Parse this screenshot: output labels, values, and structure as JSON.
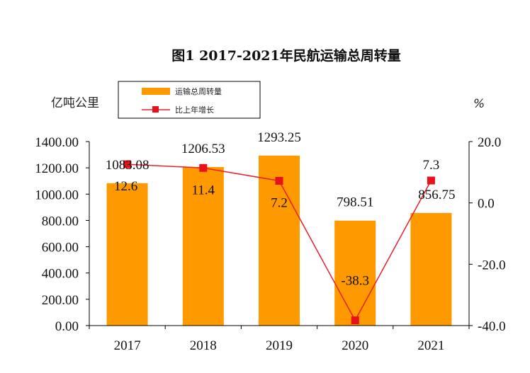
{
  "title": "图1 2017-2021年民航运输总周转量",
  "units": {
    "left": "亿吨公里",
    "right": "%"
  },
  "colors": {
    "bar": "#FF9900",
    "line": "#E8202A",
    "marker": "#E8101A",
    "axis": "#000000"
  },
  "chart_data": {
    "type": "bar",
    "categories": [
      "2017",
      "2018",
      "2019",
      "2020",
      "2021"
    ],
    "series": [
      {
        "name": "运输总周转量",
        "type": "bar",
        "axis": "left",
        "values": [
          1083.08,
          1206.53,
          1293.25,
          798.51,
          856.75
        ],
        "labels": [
          "1083.08",
          "1206.53",
          "1293.25",
          "798.51",
          "856.75"
        ]
      },
      {
        "name": "比上年增长",
        "type": "line",
        "axis": "right",
        "values": [
          12.6,
          11.4,
          7.2,
          -38.3,
          7.3
        ],
        "labels": [
          "12.6",
          "11.4",
          "7.2",
          "-38.3",
          "7.3"
        ]
      }
    ],
    "y_left": {
      "lim": [
        0,
        1400
      ],
      "ticks": [
        "0.00",
        "200.00",
        "400.00",
        "600.00",
        "800.00",
        "1000.00",
        "1200.00",
        "1400.00"
      ]
    },
    "y_right": {
      "lim": [
        -40,
        20
      ],
      "ticks": [
        "-40.0",
        "-20.0",
        "0.0",
        "20.0"
      ]
    },
    "legend": "top-left",
    "grid": false
  }
}
